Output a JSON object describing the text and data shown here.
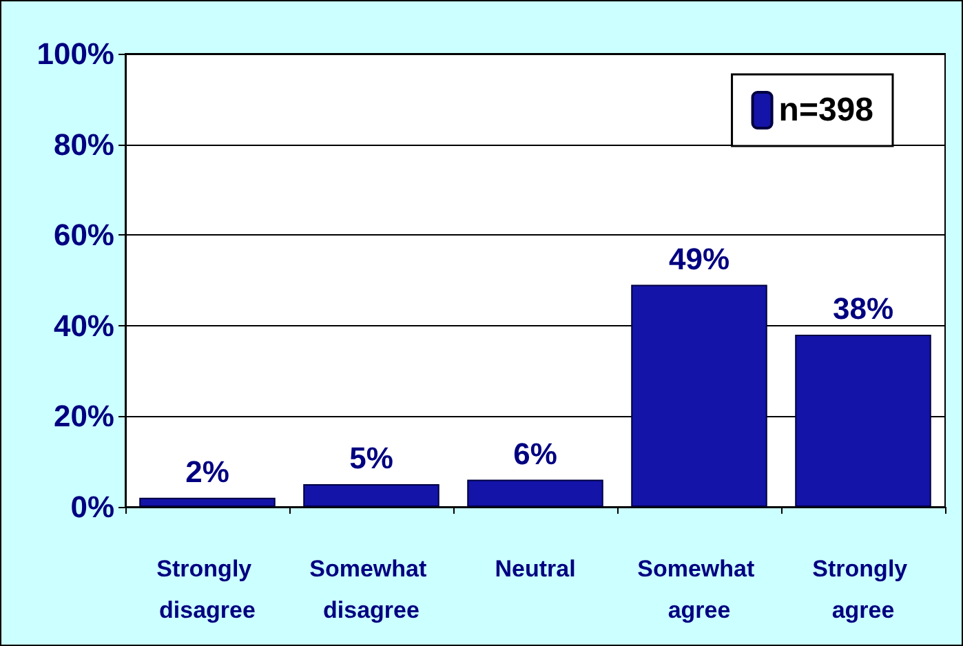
{
  "chart_data": {
    "type": "bar",
    "categories": [
      "Strongly disagree",
      "Somewhat disagree",
      "Neutral",
      "Somewhat agree",
      "Strongly agree"
    ],
    "series": [
      {
        "name": "n=398",
        "color": "#1414a8",
        "values": [
          2,
          5,
          6,
          49,
          38
        ],
        "value_labels": [
          "2%",
          "5%",
          "6%",
          "49%",
          "38%"
        ]
      }
    ],
    "ylim": [
      0,
      100
    ],
    "yticks": [
      {
        "value": 0,
        "label": "0%"
      },
      {
        "value": 20,
        "label": "20%"
      },
      {
        "value": 40,
        "label": "40%"
      },
      {
        "value": 60,
        "label": "60%"
      },
      {
        "value": 80,
        "label": "80%"
      },
      {
        "value": 100,
        "label": "100%"
      }
    ],
    "grid": "y",
    "legend": "top right"
  }
}
